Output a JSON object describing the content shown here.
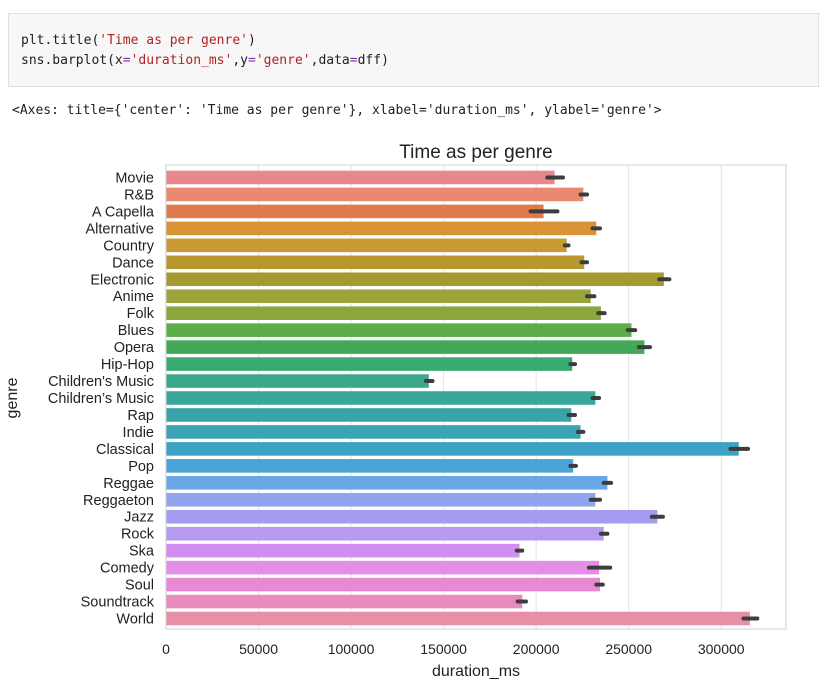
{
  "code_cell": {
    "line1": {
      "fn": "plt.title(",
      "arg": "'Time as per genre'",
      "close": ")"
    },
    "line2": {
      "fn": "sns.barplot(",
      "k1": "x",
      "v1": "'duration_ms'",
      "k2": "y",
      "v2": "'genre'",
      "k3": "data",
      "v3": "dff",
      "close": ")"
    }
  },
  "output_repr": "<Axes: title={'center': 'Time as per genre'}, xlabel='duration_ms', ylabel='genre'>",
  "chart_data": {
    "type": "bar",
    "orientation": "horizontal",
    "title": "Time as per genre",
    "xlabel": "duration_ms",
    "ylabel": "genre",
    "xlim": [
      0,
      335000
    ],
    "xticks": [
      0,
      50000,
      100000,
      150000,
      200000,
      250000,
      300000
    ],
    "grid": true,
    "categories": [
      "Movie",
      "R&B",
      "A Capella",
      "Alternative",
      "Country",
      "Dance",
      "Electronic",
      "Anime",
      "Folk",
      "Blues",
      "Opera",
      "Hip-Hop",
      "Children's Music",
      "Children’s Music",
      "Rap",
      "Indie",
      "Classical",
      "Pop",
      "Reggae",
      "Reggaeton",
      "Jazz",
      "Rock",
      "Ska",
      "Comedy",
      "Soul",
      "Soundtrack",
      "World"
    ],
    "values": [
      210000,
      225500,
      204000,
      232500,
      216500,
      226000,
      269000,
      229500,
      235000,
      251500,
      258500,
      219500,
      142000,
      232000,
      219000,
      224000,
      309500,
      220000,
      238500,
      232000,
      265500,
      236500,
      191000,
      234000,
      234500,
      192500,
      315500
    ],
    "ci_low": [
      206000,
      224000,
      197000,
      230500,
      215500,
      224500,
      266500,
      227500,
      233500,
      249500,
      255500,
      218500,
      140500,
      230500,
      217500,
      222500,
      305000,
      218500,
      236500,
      229500,
      262500,
      235000,
      189500,
      228500,
      232500,
      190000,
      312000
    ],
    "ci_high": [
      214500,
      227500,
      211500,
      234500,
      217500,
      227500,
      272000,
      231500,
      237000,
      253500,
      261500,
      221000,
      144000,
      234000,
      221000,
      225500,
      314500,
      221500,
      240500,
      234500,
      268500,
      238500,
      192500,
      240000,
      236000,
      194500,
      319500
    ],
    "colors": [
      "#e8878d",
      "#e88970",
      "#e07a4c",
      "#d99236",
      "#c99a32",
      "#b8982e",
      "#a59a2f",
      "#9ba33b",
      "#8ba63b",
      "#5aad4a",
      "#43a956",
      "#3aab70",
      "#3aa98a",
      "#39a79b",
      "#38a4a7",
      "#3aa3b5",
      "#3ca2c4",
      "#48a3d7",
      "#6aa6e6",
      "#91a4f0",
      "#a39cf0",
      "#b69af0",
      "#cf8ef0",
      "#e48ee9",
      "#e78ad3",
      "#e88bbd",
      "#e98fa5"
    ],
    "bar_color_note": "seaborn husl palette"
  }
}
